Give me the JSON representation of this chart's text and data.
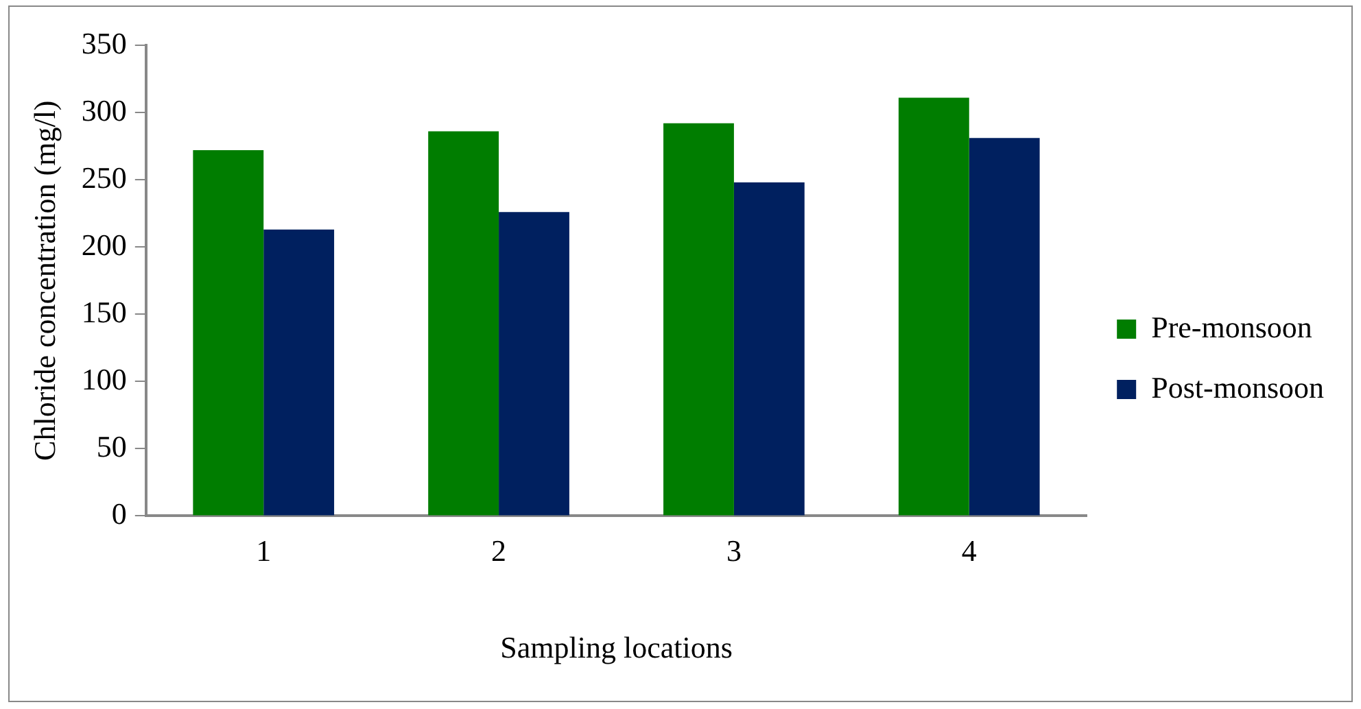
{
  "chart_data": {
    "type": "bar",
    "xlabel": "Sampling locations",
    "ylabel": "Chloride concentration (mg/l)",
    "categories": [
      "1",
      "2",
      "3",
      "4"
    ],
    "series": [
      {
        "name": "Pre-monsoon",
        "color": "#007d00",
        "values": [
          272,
          286,
          292,
          311
        ]
      },
      {
        "name": "Post-monsoon",
        "color": "#00205f",
        "values": [
          213,
          226,
          248,
          281
        ]
      }
    ],
    "ylim": [
      0,
      350
    ],
    "yticks": [
      0,
      50,
      100,
      150,
      200,
      250,
      300,
      350
    ],
    "grid": false,
    "legend": "right"
  }
}
